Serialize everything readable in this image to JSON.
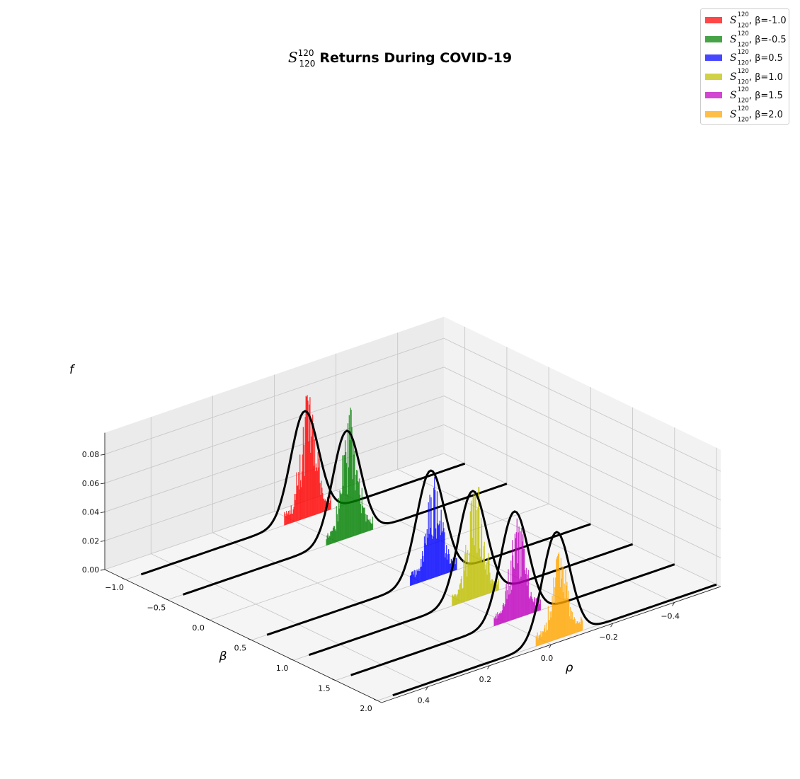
{
  "chart_data": {
    "type": "3d-histogram",
    "title": {
      "symbol": "S",
      "superscript": "120",
      "subscript": "120",
      "text": "Returns During COVID-19"
    },
    "axes": {
      "x": {
        "label": "ρ",
        "ticks": [
          "-0.4",
          "-0.2",
          "0.0",
          "0.2",
          "0.4"
        ],
        "range": [
          -0.55,
          0.55
        ]
      },
      "y": {
        "label": "β",
        "ticks": [
          "-1.0",
          "-0.5",
          "0.0",
          "0.5",
          "1.0",
          "1.5",
          "2.0"
        ],
        "range": [
          -1.25,
          2.05
        ]
      },
      "z": {
        "label": "f",
        "ticks": [
          "0.00",
          "0.02",
          "0.04",
          "0.06",
          "0.08"
        ],
        "range": [
          0.0,
          0.095
        ]
      }
    },
    "grid": true,
    "legend_position": "top-right",
    "series": [
      {
        "name_prefix": "S",
        "sup": "120",
        "sub": "120",
        "beta_text": "β=-1.0",
        "beta": -1.0,
        "color": "#ff0000",
        "peak_hist": 0.087,
        "peak_curve": 0.0745,
        "curve_center": -0.03,
        "sigma": 0.045
      },
      {
        "name_prefix": "S",
        "sup": "120",
        "sub": "120",
        "beta_text": "β=-0.5",
        "beta": -0.5,
        "color": "#008000",
        "peak_hist": 0.091,
        "peak_curve": 0.0748,
        "curve_center": -0.03,
        "sigma": 0.045
      },
      {
        "name_prefix": "S",
        "sup": "120",
        "sub": "120",
        "beta_text": "β=0.5",
        "beta": 0.5,
        "color": "#0000ff",
        "peak_hist": 0.072,
        "peak_curve": 0.0752,
        "curve_center": -0.03,
        "sigma": 0.045
      },
      {
        "name_prefix": "S",
        "sup": "120",
        "sub": "120",
        "beta_text": "β=1.0",
        "beta": 1.0,
        "color": "#bfbf00",
        "peak_hist": 0.083,
        "peak_curve": 0.075,
        "curve_center": -0.03,
        "sigma": 0.045
      },
      {
        "name_prefix": "S",
        "sup": "120",
        "sub": "120",
        "beta_text": "β=1.5",
        "beta": 1.5,
        "color": "#bf00bf",
        "peak_hist": 0.07,
        "peak_curve": 0.0748,
        "curve_center": -0.03,
        "sigma": 0.045
      },
      {
        "name_prefix": "S",
        "sup": "120",
        "sub": "120",
        "beta_text": "β=2.0",
        "beta": 2.0,
        "color": "#ffa500",
        "peak_hist": 0.063,
        "peak_curve": 0.0745,
        "curve_center": -0.03,
        "sigma": 0.045
      }
    ]
  }
}
